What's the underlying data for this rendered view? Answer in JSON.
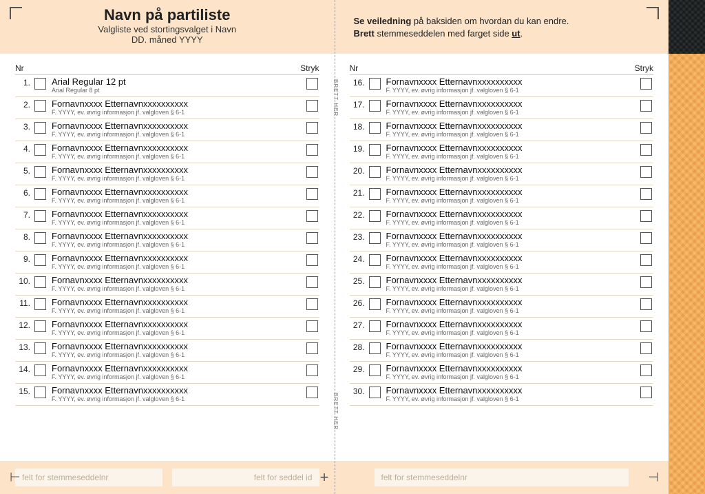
{
  "colors": {
    "header_bg": "#fde3c7",
    "row_divider": "#e3d6c5",
    "text": "#222222",
    "subtext": "#666666",
    "box_border": "#555555",
    "field_bg": "#fbf4ea",
    "field_text": "#bfae96",
    "texture_grey_a": "#6a6d6f",
    "texture_grey_b": "#4e5153",
    "texture_orange_a": "#d07a3a",
    "texture_orange_b": "#b5612a"
  },
  "header": {
    "title": "Navn på partiliste",
    "subtitle1": "Valgliste ved stortingsvalget i Navn",
    "subtitle2": "DD. måned YYYY",
    "instruction_html_parts": {
      "p1_b": "Se veiledning",
      "p1_rest": " på baksiden om hvordan du kan endre.",
      "p2_b": "Brett",
      "p2_rest": " stemmeseddelen med farget side ",
      "p2_u": "ut",
      "p2_dot": "."
    }
  },
  "column_headers": {
    "nr": "Nr",
    "stryk": "Stryk"
  },
  "fold_label": "BRETT HER",
  "footer": {
    "left_field1": "felt for stemmeseddelnr",
    "left_field2": "felt for seddel id",
    "right_field": "felt for stemmeseddelnr"
  },
  "candidates_left": [
    {
      "n": "1.",
      "name": "Arial Regular 12 pt",
      "info": "Arial Regular 8 pt"
    },
    {
      "n": "2.",
      "name": "Fornavnxxxx Etternavnxxxxxxxxxx",
      "info": "F. YYYY, ev. øvrig informasjon jf. valgloven § 6-1"
    },
    {
      "n": "3.",
      "name": "Fornavnxxxx Etternavnxxxxxxxxxx",
      "info": "F. YYYY, ev. øvrig informasjon jf. valgloven § 6-1"
    },
    {
      "n": "4.",
      "name": "Fornavnxxxx Etternavnxxxxxxxxxx",
      "info": "F. YYYY, ev. øvrig informasjon jf. valgloven § 6-1"
    },
    {
      "n": "5.",
      "name": "Fornavnxxxx Etternavnxxxxxxxxxx",
      "info": "F. YYYY, ev. øvrig informasjon jf. valgloven § 6-1"
    },
    {
      "n": "6.",
      "name": "Fornavnxxxx Etternavnxxxxxxxxxx",
      "info": "F. YYYY, ev. øvrig informasjon jf. valgloven § 6-1"
    },
    {
      "n": "7.",
      "name": "Fornavnxxxx Etternavnxxxxxxxxxx",
      "info": "F. YYYY, ev. øvrig informasjon jf. valgloven § 6-1"
    },
    {
      "n": "8.",
      "name": "Fornavnxxxx Etternavnxxxxxxxxxx",
      "info": "F. YYYY, ev. øvrig informasjon jf. valgloven § 6-1"
    },
    {
      "n": "9.",
      "name": "Fornavnxxxx Etternavnxxxxxxxxxx",
      "info": "F. YYYY, ev. øvrig informasjon jf. valgloven § 6-1"
    },
    {
      "n": "10.",
      "name": "Fornavnxxxx Etternavnxxxxxxxxxx",
      "info": "F. YYYY, ev. øvrig informasjon jf. valgloven § 6-1"
    },
    {
      "n": "11.",
      "name": "Fornavnxxxx Etternavnxxxxxxxxxx",
      "info": "F. YYYY, ev. øvrig informasjon jf. valgloven § 6-1"
    },
    {
      "n": "12.",
      "name": "Fornavnxxxx Etternavnxxxxxxxxxx",
      "info": "F. YYYY, ev. øvrig informasjon jf. valgloven § 6-1"
    },
    {
      "n": "13.",
      "name": "Fornavnxxxx Etternavnxxxxxxxxxx",
      "info": "F. YYYY, ev. øvrig informasjon jf. valgloven § 6-1"
    },
    {
      "n": "14.",
      "name": "Fornavnxxxx Etternavnxxxxxxxxxx",
      "info": "F. YYYY, ev. øvrig informasjon jf. valgloven § 6-1"
    },
    {
      "n": "15.",
      "name": "Fornavnxxxx Etternavnxxxxxxxxxx",
      "info": "F. YYYY, ev. øvrig informasjon jf. valgloven § 6-1"
    }
  ],
  "candidates_right": [
    {
      "n": "16.",
      "name": "Fornavnxxxx Etternavnxxxxxxxxxx",
      "info": "F. YYYY, ev. øvrig informasjon jf. valgloven § 6-1"
    },
    {
      "n": "17.",
      "name": "Fornavnxxxx Etternavnxxxxxxxxxx",
      "info": "F. YYYY, ev. øvrig informasjon jf. valgloven § 6-1"
    },
    {
      "n": "18.",
      "name": "Fornavnxxxx Etternavnxxxxxxxxxx",
      "info": "F. YYYY, ev. øvrig informasjon jf. valgloven § 6-1"
    },
    {
      "n": "19.",
      "name": "Fornavnxxxx Etternavnxxxxxxxxxx",
      "info": "F. YYYY, ev. øvrig informasjon jf. valgloven § 6-1"
    },
    {
      "n": "20.",
      "name": "Fornavnxxxx Etternavnxxxxxxxxxx",
      "info": "F. YYYY, ev. øvrig informasjon jf. valgloven § 6-1"
    },
    {
      "n": "21.",
      "name": "Fornavnxxxx Etternavnxxxxxxxxxx",
      "info": "F. YYYY, ev. øvrig informasjon jf. valgloven § 6-1"
    },
    {
      "n": "22.",
      "name": "Fornavnxxxx Etternavnxxxxxxxxxx",
      "info": "F. YYYY, ev. øvrig informasjon jf. valgloven § 6-1"
    },
    {
      "n": "23.",
      "name": "Fornavnxxxx Etternavnxxxxxxxxxx",
      "info": "F. YYYY, ev. øvrig informasjon jf. valgloven § 6-1"
    },
    {
      "n": "24.",
      "name": "Fornavnxxxx Etternavnxxxxxxxxxx",
      "info": "F. YYYY, ev. øvrig informasjon jf. valgloven § 6-1"
    },
    {
      "n": "25.",
      "name": "Fornavnxxxx Etternavnxxxxxxxxxx",
      "info": "F. YYYY, ev. øvrig informasjon jf. valgloven § 6-1"
    },
    {
      "n": "26.",
      "name": "Fornavnxxxx Etternavnxxxxxxxxxx",
      "info": "F. YYYY, ev. øvrig informasjon jf. valgloven § 6-1"
    },
    {
      "n": "27.",
      "name": "Fornavnxxxx Etternavnxxxxxxxxxx",
      "info": "F. YYYY, ev. øvrig informasjon jf. valgloven § 6-1"
    },
    {
      "n": "28.",
      "name": "Fornavnxxxx Etternavnxxxxxxxxxx",
      "info": "F. YYYY, ev. øvrig informasjon jf. valgloven § 6-1"
    },
    {
      "n": "29.",
      "name": "Fornavnxxxx Etternavnxxxxxxxxxx",
      "info": "F. YYYY, ev. øvrig informasjon jf. valgloven § 6-1"
    },
    {
      "n": "30.",
      "name": "Fornavnxxxx Etternavnxxxxxxxxxx",
      "info": "F. YYYY, ev. øvrig informasjon jf. valgloven § 6-1"
    }
  ]
}
